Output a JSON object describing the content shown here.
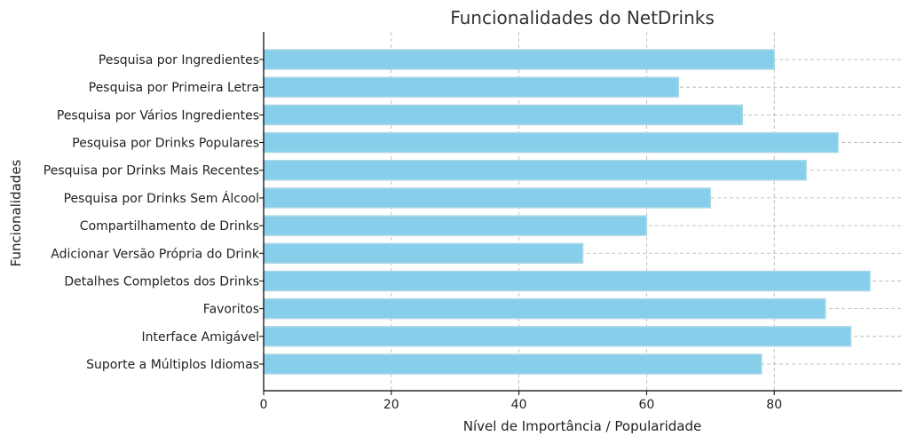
{
  "chart_data": {
    "type": "bar",
    "orientation": "horizontal",
    "title": "Funcionalidades do NetDrinks",
    "xlabel": "Nível de Importância / Popularidade",
    "ylabel": "Funcionalidades",
    "xlim": [
      0,
      100
    ],
    "xticks": [
      0,
      20,
      40,
      60,
      80
    ],
    "grid": true,
    "bar_color": "#87CEEB",
    "bar_edge_color": "#ADD8E6",
    "categories": [
      "Pesquisa por Ingredientes",
      "Pesquisa por Primeira Letra",
      "Pesquisa por Vários Ingredientes",
      "Pesquisa por Drinks Populares",
      "Pesquisa por Drinks Mais Recentes",
      "Pesquisa por Drinks Sem Álcool",
      "Compartilhamento de Drinks",
      "Adicionar Versão Própria do Drink",
      "Detalhes Completos dos Drinks",
      "Favoritos",
      "Interface Amigável",
      "Suporte a Múltiplos Idiomas"
    ],
    "values": [
      80,
      65,
      75,
      90,
      85,
      70,
      60,
      50,
      95,
      88,
      92,
      78
    ]
  }
}
